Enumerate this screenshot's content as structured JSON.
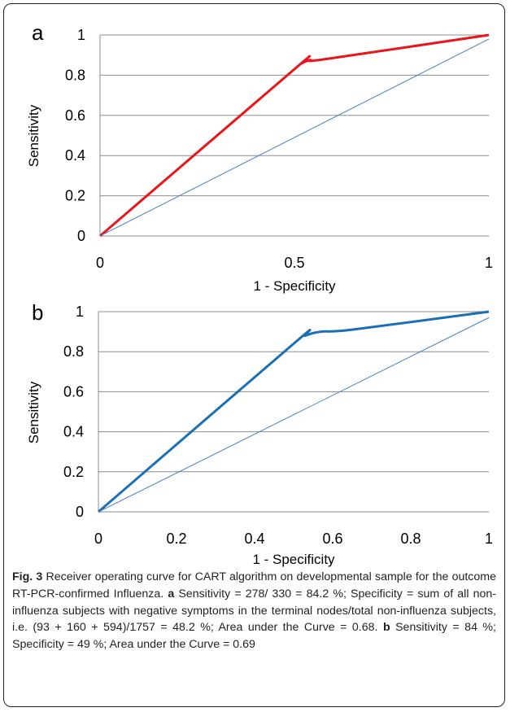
{
  "chart_data": [
    {
      "panel": "a",
      "type": "line",
      "xlabel": "1 - Specificity",
      "ylabel": "Sensitivity",
      "xlim": [
        0,
        1
      ],
      "ylim": [
        0,
        1
      ],
      "x_ticks": [
        "0",
        "0.5",
        "1"
      ],
      "y_ticks": [
        "0",
        "0.2",
        "0.4",
        "0.6",
        "0.8",
        "1"
      ],
      "grid": "horizontal",
      "series": [
        {
          "role": "roc",
          "color": "#e8151b",
          "x": [
            0,
            0.5,
            0.52,
            0.54,
            0.58,
            1.0
          ],
          "y": [
            0,
            0.83,
            0.86,
            0.875,
            0.88,
            1.0
          ]
        },
        {
          "role": "reference",
          "color": "#4a7ebf",
          "x": [
            0,
            1
          ],
          "y": [
            0,
            0.98
          ]
        }
      ]
    },
    {
      "panel": "b",
      "type": "line",
      "xlabel": "1 - Specificity",
      "ylabel": "Sensitivity",
      "xlim": [
        0,
        1
      ],
      "ylim": [
        0,
        1
      ],
      "x_ticks": [
        "0",
        "0.2",
        "0.4",
        "0.6",
        "0.8",
        "1"
      ],
      "y_ticks": [
        "0",
        "0.2",
        "0.4",
        "0.6",
        "0.8",
        "1"
      ],
      "grid": "horizontal",
      "series": [
        {
          "role": "roc",
          "color": "#1a6fb5",
          "x": [
            0,
            0.5,
            0.53,
            0.57,
            0.65,
            1.0
          ],
          "y": [
            0,
            0.84,
            0.88,
            0.9,
            0.91,
            1.0
          ]
        },
        {
          "role": "reference",
          "color": "#4a7ebf",
          "x": [
            0,
            1
          ],
          "y": [
            0,
            0.97
          ]
        }
      ]
    }
  ],
  "caption": {
    "fig_label": "Fig. 3",
    "lead": " Receiver operating curve for CART algorithm on developmental sample for the outcome RT-PCR-confirmed Influenza. ",
    "a_label": "a",
    "a_text": " Sensitivity = 278/ 330 = 84.2 %; Specificity = sum of all non-influenza subjects with negative symptoms in the terminal nodes/total non-influenza subjects, i.e. (93 + 160 + 594)/1757 = 48.2 %; Area under the Curve = 0.68. ",
    "b_label": "b",
    "b_text": " Sensitivity = 84 %; Specificity = 49 %; Area under the Curve = 0.69"
  }
}
